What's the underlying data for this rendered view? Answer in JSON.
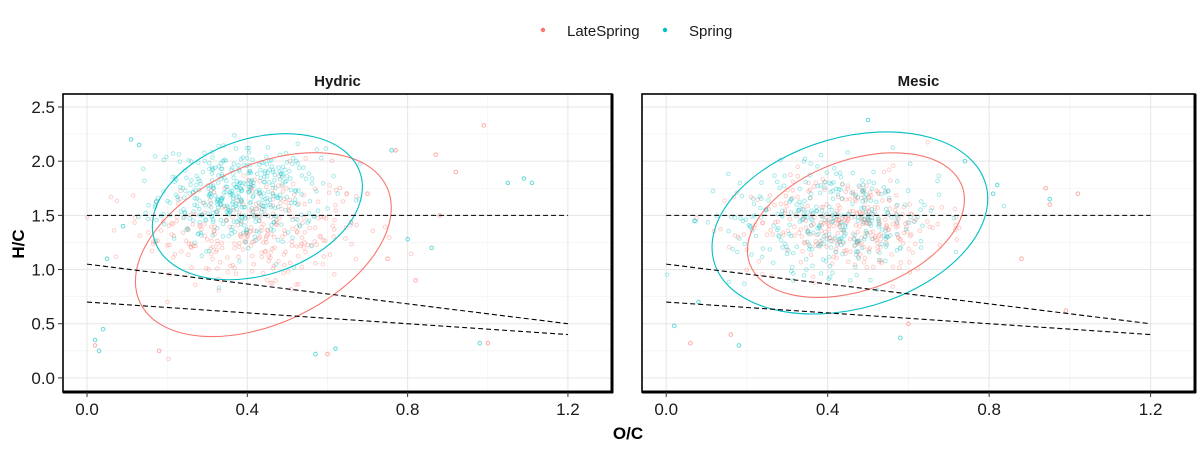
{
  "chart_data": {
    "type": "scatter",
    "xlabel": "O/C",
    "ylabel": "H/C",
    "xlim": [
      -0.06,
      1.31
    ],
    "ylim": [
      -0.13,
      2.62
    ],
    "x_ticks": [
      0.0,
      0.4,
      0.8,
      1.2
    ],
    "x_tick_labels": [
      "0.0",
      "0.4",
      "0.8",
      "1.2"
    ],
    "y_ticks": [
      0.0,
      0.5,
      1.0,
      1.5,
      2.0,
      2.5
    ],
    "y_tick_labels": [
      "0.0",
      "0.5",
      "1.0",
      "1.5",
      "2.0",
      "2.5"
    ],
    "grid": true,
    "legend_position": "top",
    "legend": [
      {
        "name": "LateSpring",
        "color": "#F8766D"
      },
      {
        "name": "Spring",
        "color": "#00BFC4"
      }
    ],
    "reference_lines": [
      {
        "style": "dashed",
        "points": [
          [
            0,
            1.5
          ],
          [
            1.2,
            1.5
          ]
        ]
      },
      {
        "style": "dashed",
        "points": [
          [
            0,
            1.05
          ],
          [
            1.2,
            0.5
          ]
        ]
      },
      {
        "style": "dashed",
        "points": [
          [
            0,
            0.7
          ],
          [
            1.2,
            0.4
          ]
        ]
      }
    ],
    "panels": [
      {
        "strip": "Hydric",
        "series": [
          {
            "name": "LateSpring",
            "color": "#F8766D",
            "ellipse": {
              "cx": 0.44,
              "cy": 1.23,
              "rx": 0.34,
              "ry": 0.73,
              "angle": -25
            },
            "cluster": {
              "mx": 0.42,
              "my": 1.35,
              "sx": 0.14,
              "sy": 0.28,
              "n": 300
            },
            "points": [
              [
                0.99,
                2.33
              ],
              [
                0.87,
                2.06
              ],
              [
                0.92,
                1.9
              ],
              [
                0.77,
                2.1
              ],
              [
                1.0,
                0.32
              ],
              [
                0.6,
                0.22
              ],
              [
                0.18,
                0.25
              ],
              [
                0.02,
                0.3
              ],
              [
                0.7,
                1.7
              ],
              [
                0.88,
                1.5
              ],
              [
                0.82,
                0.9
              ],
              [
                0.75,
                1.1
              ]
            ]
          },
          {
            "name": "Spring",
            "color": "#00BFC4",
            "ellipse": {
              "cx": 0.425,
              "cy": 1.58,
              "rx": 0.27,
              "ry": 0.63,
              "angle": -18
            },
            "cluster": {
              "mx": 0.38,
              "my": 1.68,
              "sx": 0.1,
              "sy": 0.22,
              "n": 420
            },
            "points": [
              [
                1.09,
                1.84
              ],
              [
                1.11,
                1.8
              ],
              [
                1.05,
                1.8
              ],
              [
                0.98,
                0.32
              ],
              [
                0.03,
                0.25
              ],
              [
                0.02,
                0.35
              ],
              [
                0.11,
                2.2
              ],
              [
                0.13,
                2.15
              ],
              [
                0.76,
                2.1
              ],
              [
                0.86,
                1.2
              ],
              [
                0.8,
                1.28
              ],
              [
                0.57,
                0.22
              ],
              [
                0.62,
                0.27
              ],
              [
                0.09,
                1.4
              ],
              [
                0.05,
                1.1
              ],
              [
                0.04,
                0.45
              ]
            ]
          }
        ]
      },
      {
        "strip": "Mesic",
        "series": [
          {
            "name": "LateSpring",
            "color": "#F8766D",
            "ellipse": {
              "cx": 0.47,
              "cy": 1.41,
              "rx": 0.28,
              "ry": 0.6,
              "angle": -20
            },
            "cluster": {
              "mx": 0.45,
              "my": 1.42,
              "sx": 0.12,
              "sy": 0.22,
              "n": 320
            },
            "points": [
              [
                0.99,
                0.62
              ],
              [
                0.94,
                1.75
              ],
              [
                0.95,
                1.6
              ],
              [
                1.02,
                1.7
              ],
              [
                0.6,
                0.5
              ],
              [
                0.16,
                0.4
              ],
              [
                0.06,
                0.32
              ],
              [
                0.88,
                1.1
              ]
            ]
          },
          {
            "name": "Spring",
            "color": "#00BFC4",
            "ellipse": {
              "cx": 0.455,
              "cy": 1.43,
              "rx": 0.35,
              "ry": 0.79,
              "angle": -16
            },
            "cluster": {
              "mx": 0.42,
              "my": 1.48,
              "sx": 0.13,
              "sy": 0.25,
              "n": 320
            },
            "points": [
              [
                0.5,
                2.38
              ],
              [
                0.82,
                1.78
              ],
              [
                0.81,
                1.7
              ],
              [
                0.18,
                0.3
              ],
              [
                0.02,
                0.48
              ],
              [
                0.95,
                1.65
              ],
              [
                0.58,
                0.37
              ],
              [
                0.07,
                1.45
              ],
              [
                0.08,
                0.7
              ],
              [
                0.74,
                2.0
              ]
            ]
          }
        ]
      }
    ]
  }
}
